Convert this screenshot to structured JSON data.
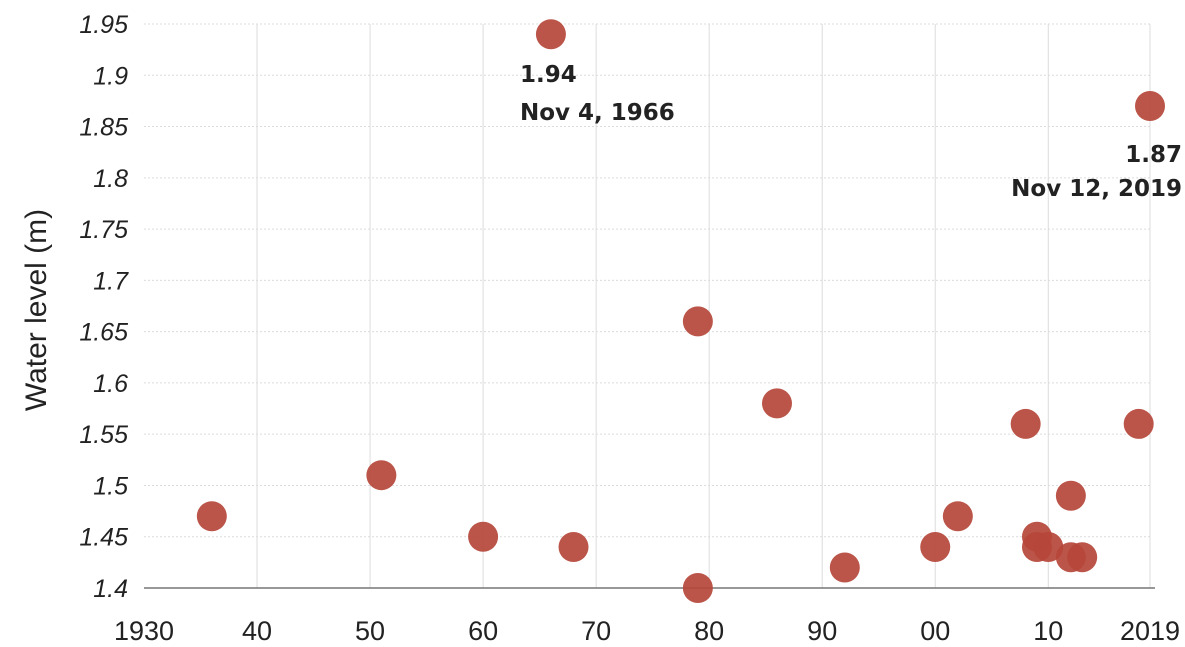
{
  "chart_data": {
    "type": "scatter",
    "ylabel": "Water level (m)",
    "xlim": [
      1930,
      2019
    ],
    "ylim": [
      1.4,
      1.95
    ],
    "grid": true,
    "point_color": "#B5473A",
    "x_ticks": [
      {
        "value": 1930,
        "label": "1930"
      },
      {
        "value": 1940,
        "label": "40"
      },
      {
        "value": 1950,
        "label": "50"
      },
      {
        "value": 1960,
        "label": "60"
      },
      {
        "value": 1970,
        "label": "70"
      },
      {
        "value": 1980,
        "label": "80"
      },
      {
        "value": 1990,
        "label": "90"
      },
      {
        "value": 2000,
        "label": "00"
      },
      {
        "value": 2010,
        "label": "10"
      },
      {
        "value": 2019,
        "label": "2019"
      }
    ],
    "y_ticks": [
      {
        "value": 1.4,
        "label": "1.4"
      },
      {
        "value": 1.45,
        "label": "1.45"
      },
      {
        "value": 1.5,
        "label": "1.5"
      },
      {
        "value": 1.55,
        "label": "1.55"
      },
      {
        "value": 1.6,
        "label": "1.6"
      },
      {
        "value": 1.65,
        "label": "1.65"
      },
      {
        "value": 1.7,
        "label": "1.7"
      },
      {
        "value": 1.75,
        "label": "1.75"
      },
      {
        "value": 1.8,
        "label": "1.8"
      },
      {
        "value": 1.85,
        "label": "1.85"
      },
      {
        "value": 1.9,
        "label": "1.9"
      },
      {
        "value": 1.95,
        "label": "1.95"
      }
    ],
    "points": [
      {
        "x": 1936,
        "y": 1.47
      },
      {
        "x": 1951,
        "y": 1.51
      },
      {
        "x": 1960,
        "y": 1.45
      },
      {
        "x": 1966,
        "y": 1.94
      },
      {
        "x": 1968,
        "y": 1.44
      },
      {
        "x": 1979,
        "y": 1.66
      },
      {
        "x": 1979,
        "y": 1.4
      },
      {
        "x": 1986,
        "y": 1.58
      },
      {
        "x": 1992,
        "y": 1.42
      },
      {
        "x": 2000,
        "y": 1.44
      },
      {
        "x": 2002,
        "y": 1.47
      },
      {
        "x": 2008,
        "y": 1.56
      },
      {
        "x": 2009,
        "y": 1.45
      },
      {
        "x": 2009,
        "y": 1.44
      },
      {
        "x": 2010,
        "y": 1.44
      },
      {
        "x": 2012,
        "y": 1.49
      },
      {
        "x": 2012,
        "y": 1.43
      },
      {
        "x": 2013,
        "y": 1.43
      },
      {
        "x": 2018,
        "y": 1.56
      },
      {
        "x": 2019,
        "y": 1.87
      }
    ],
    "annotations": [
      {
        "value": "1.94",
        "date": "Nov 4, 1966",
        "align": "start"
      },
      {
        "value": "1.87",
        "date": "Nov 12, 2019",
        "align": "end"
      }
    ]
  }
}
